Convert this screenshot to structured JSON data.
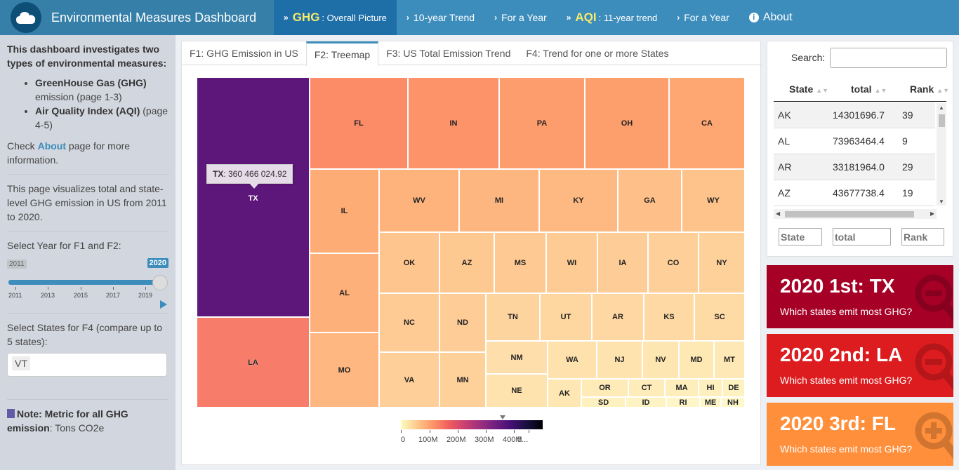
{
  "header": {
    "title": "Environmental Measures Dashboard",
    "nav": [
      {
        "big": "GHG",
        "small": ": Overall Picture",
        "active": true
      },
      {
        "big": "",
        "small": "10-year Trend",
        "active": false
      },
      {
        "big": "",
        "small": "For a Year",
        "active": false
      },
      {
        "big": "AQI",
        "small": ": 11-year trend",
        "active": false
      },
      {
        "big": "",
        "small": "For a Year",
        "active": false
      },
      {
        "big": "",
        "small": "About",
        "active": false
      }
    ]
  },
  "sidebar": {
    "intro": "This dashboard investigates two types of environmental measures",
    "measure1_bold": "GreenHouse Gas (GHG)",
    "measure1_rest": "emission (page 1-3)",
    "measure2_bold": "Air Quality Index (AQI)",
    "measure2_rest": "(page 4-5)",
    "check_pre": "Check",
    "about_link": "About",
    "check_post": "page for more information.",
    "page_desc": "This page visualizes total and state-level GHG emission in US from 2011 to 2020.",
    "year_label": "Select Year for F1 and F2:",
    "slider": {
      "min": "2011",
      "max": "2020",
      "value_fraction": 1.0,
      "ticks": [
        "2011",
        "2013",
        "2015",
        "2017",
        "2019"
      ]
    },
    "states_label": "Select States for F4 (compare up to 5 states):",
    "selected_state": "VT",
    "note_bold": "Note",
    "note_mid": ": Metric for all GHG emission",
    "note_rest": ": Tons CO2e"
  },
  "tabs": [
    "F1: GHG Emission in US",
    "F2: Treemap",
    "F3: US Total Emission Trend",
    "F4: Trend for one or more States"
  ],
  "treemap": {
    "tooltip_state": "TX",
    "tooltip_value": ": 360 466 024.92",
    "cells": [
      {
        "s": "TX",
        "c": "#5d1679"
      },
      {
        "s": "LA",
        "c": "#f77d6a"
      },
      {
        "s": "FL",
        "c": "#fb8c67"
      },
      {
        "s": "IN",
        "c": "#fd9469"
      },
      {
        "s": "PA",
        "c": "#fd9c6c"
      },
      {
        "s": "OH",
        "c": "#fd9e6d"
      },
      {
        "s": "CA",
        "c": "#fea772"
      },
      {
        "s": "IL",
        "c": "#feac76"
      },
      {
        "s": "AL",
        "c": "#feb07a"
      },
      {
        "s": "MO",
        "c": "#feb781"
      },
      {
        "s": "WV",
        "c": "#feb37d"
      },
      {
        "s": "MI",
        "c": "#feb680"
      },
      {
        "s": "KY",
        "c": "#feb982"
      },
      {
        "s": "GA",
        "c": "#febf88"
      },
      {
        "s": "WY",
        "c": "#fec28b"
      },
      {
        "s": "OK",
        "c": "#fec68e"
      },
      {
        "s": "AZ",
        "c": "#fec891"
      },
      {
        "s": "MS",
        "c": "#fec993"
      },
      {
        "s": "WI",
        "c": "#fecb95"
      },
      {
        "s": "IA",
        "c": "#fecd97"
      },
      {
        "s": "CO",
        "c": "#fecf99"
      },
      {
        "s": "NY",
        "c": "#fed19b"
      },
      {
        "s": "NC",
        "c": "#fecb94"
      },
      {
        "s": "ND",
        "c": "#fecd97"
      },
      {
        "s": "TN",
        "c": "#fed49e"
      },
      {
        "s": "UT",
        "c": "#fed6a0"
      },
      {
        "s": "AR",
        "c": "#fed7a2"
      },
      {
        "s": "KS",
        "c": "#fed9a3"
      },
      {
        "s": "SC",
        "c": "#fedaa5"
      },
      {
        "s": "VA",
        "c": "#fecf98"
      },
      {
        "s": "MN",
        "c": "#fed19b"
      },
      {
        "s": "NM",
        "c": "#fedfab"
      },
      {
        "s": "WA",
        "c": "#fee1ad"
      },
      {
        "s": "NJ",
        "c": "#fee3af"
      },
      {
        "s": "NV",
        "c": "#fee6b2"
      },
      {
        "s": "MD",
        "c": "#fee8b4"
      },
      {
        "s": "MT",
        "c": "#fee9b6"
      },
      {
        "s": "NE",
        "c": "#fee3ae"
      },
      {
        "s": "AK",
        "c": "#fee7b3"
      },
      {
        "s": "OR",
        "c": "#feebb8"
      },
      {
        "s": "CT",
        "c": "#feecba"
      },
      {
        "s": "MA",
        "c": "#feeebc"
      },
      {
        "s": "HI",
        "c": "#fef0be"
      },
      {
        "s": "DE",
        "c": "#fef2c0"
      },
      {
        "s": "SD",
        "c": "#fef1c0"
      },
      {
        "s": "ID",
        "c": "#fef3c3"
      },
      {
        "s": "RI",
        "c": "#fef6c7"
      },
      {
        "s": "ME",
        "c": "#fef6c8"
      },
      {
        "s": "NH",
        "c": "#fef8ca"
      }
    ]
  },
  "colorbar": {
    "labels": [
      "0",
      "100M",
      "200M",
      "300M",
      "400M",
      "5..."
    ]
  },
  "table": {
    "search_label": "Search:",
    "headers": [
      "State",
      "total",
      "Rank"
    ],
    "rows": [
      {
        "state": "AK",
        "total": "14301696.7",
        "rank": "39"
      },
      {
        "state": "AL",
        "total": "73963464.4",
        "rank": "9"
      },
      {
        "state": "AR",
        "total": "33181964.0",
        "rank": "29"
      },
      {
        "state": "AZ",
        "total": "43677738.4",
        "rank": "19"
      }
    ],
    "filters": [
      "State",
      "total",
      "Rank"
    ]
  },
  "valueboxes": [
    {
      "title": "2020 1st: TX",
      "subtitle": "Which states emit most GHG?",
      "color": "#a60026"
    },
    {
      "title": "2020 2nd: LA",
      "subtitle": "Which states emit most GHG?",
      "color": "#dd1c1f"
    },
    {
      "title": "2020 3rd: FL",
      "subtitle": "Which states emit most GHG?",
      "color": "#ff8f3b"
    }
  ]
}
